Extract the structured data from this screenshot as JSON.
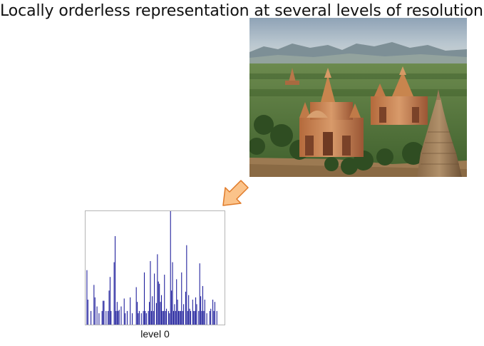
{
  "slide": {
    "title": "Locally orderless representation at several levels of resolution"
  },
  "photo": {
    "subject": "temples-landscape-photo"
  },
  "arrow": {
    "fill": "#fbc38a",
    "stroke": "#e07b2a"
  },
  "chart_data": {
    "type": "bar",
    "label": "level 0",
    "bar_color": "#1a1a9a",
    "ylim": [
      0,
      1
    ],
    "values": [
      0,
      0.48,
      0.22,
      0,
      0,
      0.12,
      0,
      0,
      0.35,
      0.24,
      0,
      0.16,
      0,
      0.1,
      0,
      0,
      0.12,
      0.21,
      0.21,
      0,
      0.12,
      0,
      0.12,
      0.3,
      0.42,
      0.12,
      0,
      0,
      0.55,
      0.78,
      0.12,
      0.2,
      0.12,
      0.13,
      0,
      0.16,
      0,
      0,
      0.23,
      0.1,
      0,
      0.12,
      0,
      0,
      0.24,
      0,
      0.1,
      0,
      0,
      0,
      0.33,
      0.2,
      0.1,
      0.12,
      0,
      0.1,
      0,
      0.12,
      0.46,
      0.12,
      0.1,
      0,
      0.12,
      0.2,
      0.56,
      0.12,
      0.25,
      0.12,
      0.45,
      0,
      0.19,
      0.62,
      0.38,
      0.36,
      0.2,
      0.26,
      0.12,
      0.12,
      0.44,
      0.12,
      0.14,
      0,
      0.12,
      0.1,
      1.0,
      0.3,
      0.55,
      0.12,
      0.18,
      0.12,
      0.4,
      0.22,
      0.12,
      0.12,
      0.12,
      0.46,
      0.12,
      0.18,
      0,
      0.29,
      0.7,
      0.12,
      0.26,
      0.14,
      0.12,
      0,
      0.22,
      0.12,
      0.12,
      0.24,
      0.18,
      0,
      0.12,
      0.54,
      0.25,
      0.12,
      0.34,
      0.12,
      0.22,
      0,
      0.1,
      0,
      0,
      0.12,
      0.14,
      0,
      0.22,
      0.12,
      0.2,
      0,
      0.12,
      0,
      0,
      0,
      0,
      0,
      0,
      0
    ]
  }
}
